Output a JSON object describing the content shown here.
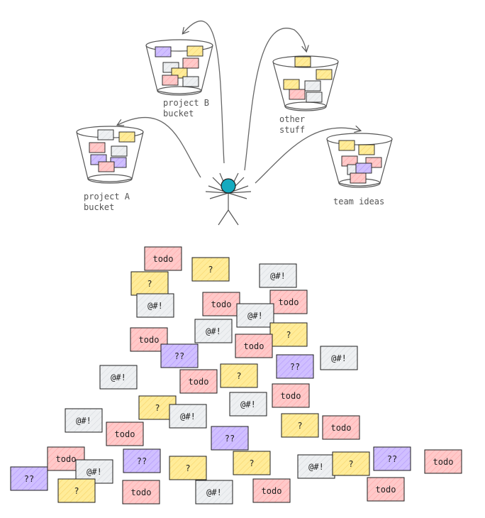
{
  "buckets": [
    {
      "label_lines": [
        "project B",
        "bucket"
      ]
    },
    {
      "label_lines": [
        "other",
        "stuff"
      ]
    },
    {
      "label_lines": [
        "project A",
        "bucket"
      ]
    },
    {
      "label_lines": [
        "team ideas"
      ]
    }
  ],
  "notes_texts": {
    "todo": "todo",
    "question": "?",
    "swear": "@#!",
    "unknown": "??"
  },
  "colors": {
    "todo": "#ffc9c9",
    "question": "#ffec99",
    "swear": "#e9ecef",
    "unknown": "#d0bfff",
    "stroke": "#1e1e1e",
    "person": "#15aabf"
  }
}
